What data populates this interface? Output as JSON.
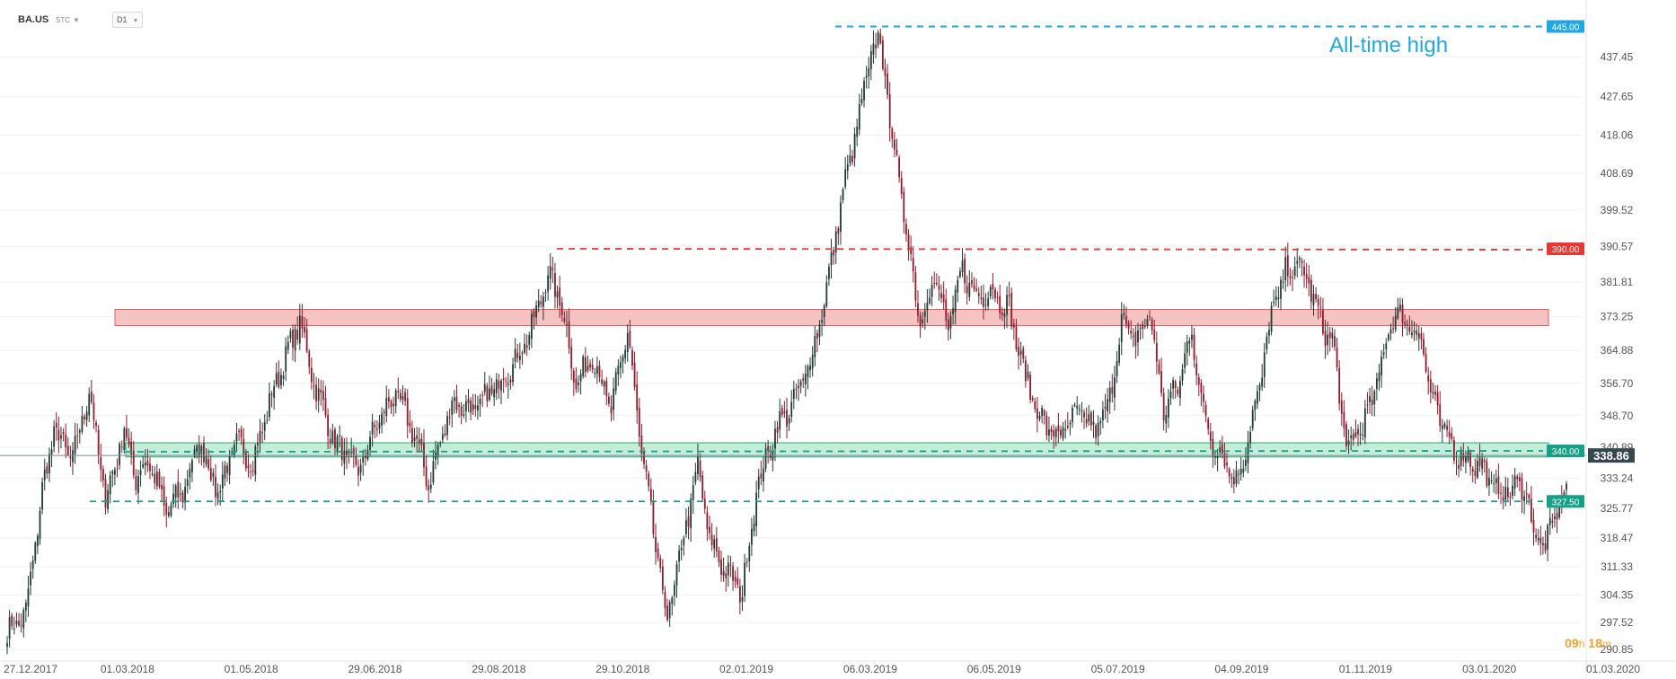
{
  "instrument": {
    "symbol": "BA.US",
    "type_label": "STC",
    "timeframe": "D1"
  },
  "countdown": {
    "hours": "09",
    "h_unit": "h",
    "minutes": "18",
    "m_unit": "m"
  },
  "colors": {
    "up": "#1f3b34",
    "down": "#8e1b2b",
    "resistance_line": "#e53935",
    "resistance_zone_fill": "#f6c3c3",
    "resistance_zone_edge": "#e06060",
    "support_line": "#16a085",
    "support_zone_fill": "#b9ebd3",
    "support_zone_edge": "#2ea870",
    "ath_line": "#22a7e0",
    "price_tag": "#37474f"
  },
  "chart_data": {
    "type": "candlestick",
    "title": "",
    "ylim": [
      288,
      448
    ],
    "y_ticks": [
      437.45,
      427.65,
      418.06,
      408.69,
      399.52,
      390.57,
      381.81,
      373.25,
      364.88,
      356.7,
      348.7,
      340.89,
      333.24,
      325.77,
      318.47,
      311.33,
      304.35,
      297.52,
      290.85
    ],
    "x_tick_labels": [
      "27.12.2017",
      "01.03.2018",
      "01.05.2018",
      "29.06.2018",
      "29.08.2018",
      "29.10.2018",
      "02.01.2019",
      "06.03.2019",
      "06.05.2019",
      "05.07.2019",
      "04.09.2019",
      "01.11.2019",
      "03.01.2020",
      "01.03.2020"
    ],
    "anchors": [
      [
        0,
        295
      ],
      [
        8,
        300
      ],
      [
        15,
        330
      ],
      [
        20,
        345
      ],
      [
        28,
        338
      ],
      [
        35,
        355
      ],
      [
        42,
        328
      ],
      [
        50,
        345
      ],
      [
        55,
        333
      ],
      [
        60,
        338
      ],
      [
        68,
        325
      ],
      [
        75,
        330
      ],
      [
        82,
        342
      ],
      [
        90,
        330
      ],
      [
        98,
        342
      ],
      [
        105,
        337
      ],
      [
        112,
        352
      ],
      [
        118,
        362
      ],
      [
        125,
        372
      ],
      [
        131,
        357
      ],
      [
        140,
        342
      ],
      [
        150,
        335
      ],
      [
        158,
        347
      ],
      [
        166,
        354
      ],
      [
        174,
        344
      ],
      [
        180,
        332
      ],
      [
        190,
        352
      ],
      [
        200,
        350
      ],
      [
        210,
        357
      ],
      [
        218,
        363
      ],
      [
        225,
        372
      ],
      [
        231,
        384
      ],
      [
        237,
        376
      ],
      [
        243,
        356
      ],
      [
        250,
        364
      ],
      [
        258,
        350
      ],
      [
        265,
        370
      ],
      [
        270,
        344
      ],
      [
        276,
        320
      ],
      [
        282,
        298
      ],
      [
        288,
        316
      ],
      [
        295,
        336
      ],
      [
        300,
        318
      ],
      [
        307,
        310
      ],
      [
        314,
        305
      ],
      [
        320,
        330
      ],
      [
        328,
        345
      ],
      [
        336,
        352
      ],
      [
        343,
        362
      ],
      [
        350,
        380
      ],
      [
        357,
        404
      ],
      [
        364,
        423
      ],
      [
        369,
        438
      ],
      [
        373,
        442
      ],
      [
        377,
        422
      ],
      [
        384,
        395
      ],
      [
        390,
        372
      ],
      [
        396,
        383
      ],
      [
        402,
        370
      ],
      [
        408,
        385
      ],
      [
        414,
        378
      ],
      [
        420,
        380
      ],
      [
        428,
        375
      ],
      [
        434,
        360
      ],
      [
        440,
        350
      ],
      [
        446,
        344
      ],
      [
        452,
        345
      ],
      [
        458,
        350
      ],
      [
        464,
        345
      ],
      [
        470,
        350
      ],
      [
        476,
        372
      ],
      [
        482,
        367
      ],
      [
        488,
        374
      ],
      [
        494,
        350
      ],
      [
        500,
        356
      ],
      [
        506,
        370
      ],
      [
        510,
        352
      ],
      [
        515,
        342
      ],
      [
        520,
        338
      ],
      [
        525,
        332
      ],
      [
        530,
        343
      ],
      [
        535,
        356
      ],
      [
        540,
        374
      ],
      [
        546,
        384
      ],
      [
        552,
        386
      ],
      [
        557,
        380
      ],
      [
        562,
        370
      ],
      [
        566,
        368
      ],
      [
        572,
        340
      ],
      [
        577,
        345
      ],
      [
        582,
        350
      ],
      [
        587,
        362
      ],
      [
        592,
        374
      ],
      [
        598,
        372
      ],
      [
        604,
        368
      ],
      [
        608,
        354
      ],
      [
        613,
        346
      ],
      [
        618,
        340
      ],
      [
        624,
        338
      ],
      [
        630,
        336
      ],
      [
        636,
        330
      ],
      [
        642,
        330
      ],
      [
        648,
        332
      ],
      [
        652,
        320
      ],
      [
        657,
        316
      ],
      [
        662,
        326
      ],
      [
        666,
        330
      ]
    ],
    "resistance_zone": [
      371,
      375
    ],
    "support_zone": [
      338.5,
      342
    ],
    "levels": [
      {
        "name": "ath",
        "value": 445.0,
        "label": "445.00"
      },
      {
        "name": "resistance",
        "value": 390.0,
        "label": "390.00"
      },
      {
        "name": "support",
        "value": 340.0,
        "label": "340.00"
      },
      {
        "name": "lower-support",
        "value": 327.5,
        "label": "327.50"
      }
    ],
    "last_price": 338.86,
    "last_price_label": "338.86",
    "annotations": [
      {
        "text": "All-time high"
      }
    ]
  }
}
